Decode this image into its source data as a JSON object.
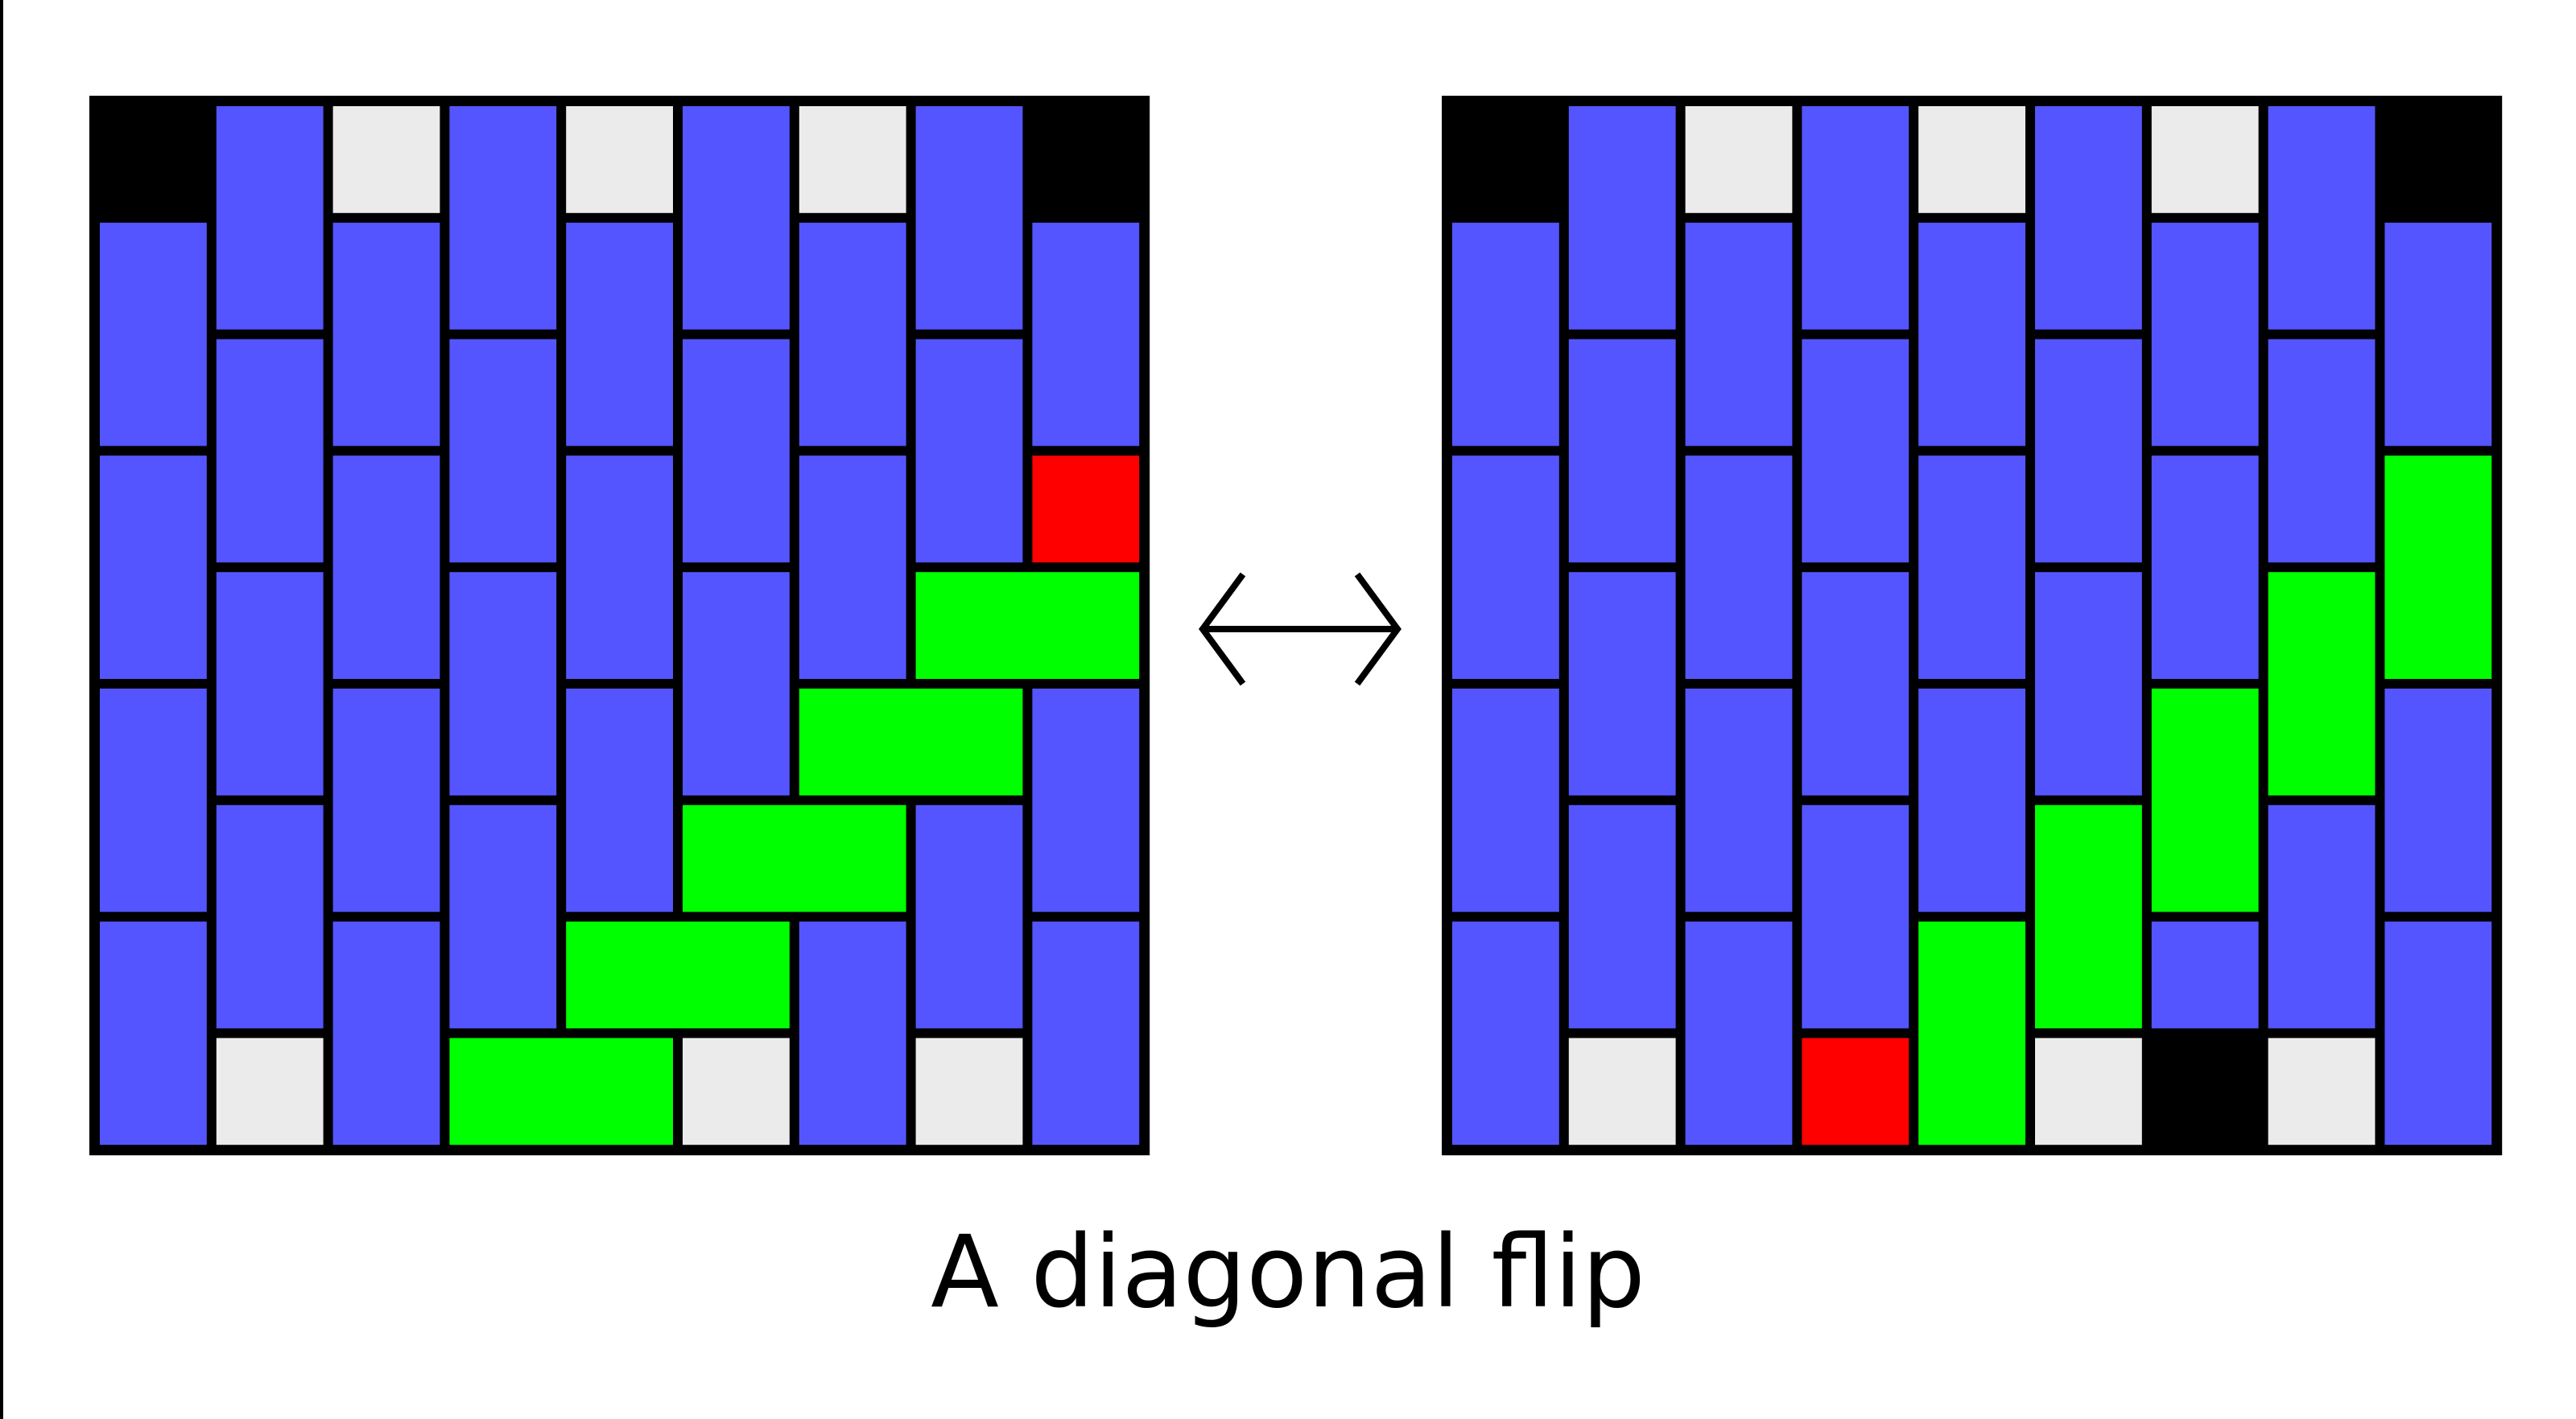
{
  "caption": "A diagonal flip",
  "arrow_icon": "left-right-arrow-icon",
  "colors": {
    "background": "#ffffff",
    "border": "#000000",
    "blue": "#5555ff",
    "gray": "#ebebeb",
    "green": "#00ff00",
    "red": "#ff0000",
    "black": "#000000"
  },
  "grid_size": 9,
  "boards": [
    {
      "name": "before-flip",
      "cells": [
        [
          "K",
          "B",
          "G",
          "B",
          "G",
          "B",
          "G",
          "B",
          "K"
        ],
        [
          "B",
          "B",
          "B",
          "B",
          "B",
          "B",
          "B",
          "B",
          "B"
        ],
        [
          "B",
          "B",
          "B",
          "B",
          "B",
          "B",
          "B",
          "B",
          "B"
        ],
        [
          "B",
          "B",
          "B",
          "B",
          "B",
          "B",
          "B",
          "B",
          "B"
        ],
        [
          "B",
          "B",
          "B",
          "B",
          "B",
          "B",
          "B",
          "B",
          "R"
        ],
        [
          "B",
          "B",
          "B",
          "B",
          "B",
          "B",
          "B",
          "N",
          "N"
        ],
        [
          "B",
          "B",
          "B",
          "B",
          "B",
          "B",
          "B",
          "N",
          "N"
        ],
        [
          "B",
          "B",
          "B",
          "B",
          "B",
          "N",
          "N",
          "B",
          "B"
        ],
        [
          "B",
          "B",
          "B",
          "B",
          "B",
          "N",
          "N",
          "B",
          "B"
        ],
        [
          "B",
          "B",
          "B",
          "B",
          "N",
          "N",
          "B",
          "B",
          "B"
        ],
        [
          "B",
          "B",
          "B",
          "B",
          "N",
          "N",
          "B",
          "B",
          "B"
        ],
        [
          "B",
          "B",
          "B",
          "N",
          "N",
          "B",
          "B",
          "B",
          "B"
        ],
        [
          "B",
          "B",
          "B",
          "N",
          "N",
          "B",
          "B",
          "B",
          "B"
        ],
        [
          "B",
          "G",
          "B",
          "N",
          "N",
          "G",
          "B",
          "G",
          "B"
        ]
      ],
      "cells_note": "",
      "tiles": [
        {
          "type": "black",
          "c": 0,
          "r": 0,
          "w": 1,
          "h": 1
        },
        {
          "type": "gray",
          "c": 2,
          "r": 0,
          "w": 1,
          "h": 1
        },
        {
          "type": "gray",
          "c": 4,
          "r": 0,
          "w": 1,
          "h": 1
        },
        {
          "type": "gray",
          "c": 6,
          "r": 0,
          "w": 1,
          "h": 1
        },
        {
          "type": "black",
          "c": 8,
          "r": 0,
          "w": 1,
          "h": 1
        },
        {
          "type": "blue",
          "c": 1,
          "r": 0,
          "w": 1,
          "h": 2
        },
        {
          "type": "blue",
          "c": 3,
          "r": 0,
          "w": 1,
          "h": 2
        },
        {
          "type": "blue",
          "c": 5,
          "r": 0,
          "w": 1,
          "h": 2
        },
        {
          "type": "blue",
          "c": 7,
          "r": 0,
          "w": 1,
          "h": 2
        },
        {
          "type": "blue",
          "c": 0,
          "r": 1,
          "w": 1,
          "h": 2
        },
        {
          "type": "blue",
          "c": 2,
          "r": 1,
          "w": 1,
          "h": 2
        },
        {
          "type": "blue",
          "c": 4,
          "r": 1,
          "w": 1,
          "h": 2
        },
        {
          "type": "blue",
          "c": 6,
          "r": 1,
          "w": 1,
          "h": 2
        },
        {
          "type": "blue",
          "c": 8,
          "r": 1,
          "w": 1,
          "h": 2
        },
        {
          "type": "blue",
          "c": 1,
          "r": 2,
          "w": 1,
          "h": 2
        },
        {
          "type": "blue",
          "c": 3,
          "r": 2,
          "w": 1,
          "h": 2
        },
        {
          "type": "blue",
          "c": 5,
          "r": 2,
          "w": 1,
          "h": 2
        },
        {
          "type": "blue",
          "c": 7,
          "r": 2,
          "w": 1,
          "h": 2
        },
        {
          "type": "red",
          "c": 8,
          "r": 3,
          "w": 1,
          "h": 1
        },
        {
          "type": "blue",
          "c": 0,
          "r": 3,
          "w": 1,
          "h": 2
        },
        {
          "type": "blue",
          "c": 2,
          "r": 3,
          "w": 1,
          "h": 2
        },
        {
          "type": "blue",
          "c": 4,
          "r": 3,
          "w": 1,
          "h": 2
        },
        {
          "type": "blue",
          "c": 6,
          "r": 3,
          "w": 1,
          "h": 2
        },
        {
          "type": "green",
          "c": 7,
          "r": 4,
          "w": 2,
          "h": 1
        },
        {
          "type": "blue",
          "c": 1,
          "r": 4,
          "w": 1,
          "h": 2
        },
        {
          "type": "blue",
          "c": 3,
          "r": 4,
          "w": 1,
          "h": 2
        },
        {
          "type": "blue",
          "c": 5,
          "r": 4,
          "w": 1,
          "h": 2
        },
        {
          "type": "green",
          "c": 6,
          "r": 5,
          "w": 2,
          "h": 1
        },
        {
          "type": "blue",
          "c": 0,
          "r": 5,
          "w": 1,
          "h": 2
        },
        {
          "type": "blue",
          "c": 2,
          "r": 5,
          "w": 1,
          "h": 2
        },
        {
          "type": "blue",
          "c": 4,
          "r": 5,
          "w": 1,
          "h": 2
        },
        {
          "type": "blue",
          "c": 8,
          "r": 5,
          "w": 1,
          "h": 2
        },
        {
          "type": "green",
          "c": 5,
          "r": 6,
          "w": 2,
          "h": 1
        },
        {
          "type": "blue",
          "c": 1,
          "r": 6,
          "w": 1,
          "h": 2
        },
        {
          "type": "blue",
          "c": 3,
          "r": 6,
          "w": 1,
          "h": 2
        },
        {
          "type": "blue",
          "c": 7,
          "r": 6,
          "w": 1,
          "h": 2
        },
        {
          "type": "green",
          "c": 4,
          "r": 7,
          "w": 2,
          "h": 1
        },
        {
          "type": "blue",
          "c": 0,
          "r": 7,
          "w": 1,
          "h": 2
        },
        {
          "type": "blue",
          "c": 2,
          "r": 7,
          "w": 1,
          "h": 2
        },
        {
          "type": "blue",
          "c": 6,
          "r": 7,
          "w": 1,
          "h": 2
        },
        {
          "type": "blue",
          "c": 8,
          "r": 7,
          "w": 1,
          "h": 2
        },
        {
          "type": "green",
          "c": 3,
          "r": 8,
          "w": 2,
          "h": 1
        },
        {
          "type": "gray",
          "c": 1,
          "r": 8,
          "w": 1,
          "h": 1
        },
        {
          "type": "gray",
          "c": 5,
          "r": 8,
          "w": 1,
          "h": 1
        },
        {
          "type": "gray",
          "c": 7,
          "r": 8,
          "w": 1,
          "h": 1
        }
      ]
    },
    {
      "name": "after-flip",
      "tiles": [
        {
          "type": "black",
          "c": 0,
          "r": 0,
          "w": 1,
          "h": 1
        },
        {
          "type": "gray",
          "c": 2,
          "r": 0,
          "w": 1,
          "h": 1
        },
        {
          "type": "gray",
          "c": 4,
          "r": 0,
          "w": 1,
          "h": 1
        },
        {
          "type": "gray",
          "c": 6,
          "r": 0,
          "w": 1,
          "h": 1
        },
        {
          "type": "black",
          "c": 8,
          "r": 0,
          "w": 1,
          "h": 1
        },
        {
          "type": "blue",
          "c": 1,
          "r": 0,
          "w": 1,
          "h": 2
        },
        {
          "type": "blue",
          "c": 3,
          "r": 0,
          "w": 1,
          "h": 2
        },
        {
          "type": "blue",
          "c": 5,
          "r": 0,
          "w": 1,
          "h": 2
        },
        {
          "type": "blue",
          "c": 7,
          "r": 0,
          "w": 1,
          "h": 2
        },
        {
          "type": "blue",
          "c": 0,
          "r": 1,
          "w": 1,
          "h": 2
        },
        {
          "type": "blue",
          "c": 2,
          "r": 1,
          "w": 1,
          "h": 2
        },
        {
          "type": "blue",
          "c": 4,
          "r": 1,
          "w": 1,
          "h": 2
        },
        {
          "type": "blue",
          "c": 6,
          "r": 1,
          "w": 1,
          "h": 2
        },
        {
          "type": "blue",
          "c": 8,
          "r": 1,
          "w": 1,
          "h": 2
        },
        {
          "type": "blue",
          "c": 1,
          "r": 2,
          "w": 1,
          "h": 2
        },
        {
          "type": "blue",
          "c": 3,
          "r": 2,
          "w": 1,
          "h": 2
        },
        {
          "type": "blue",
          "c": 5,
          "r": 2,
          "w": 1,
          "h": 2
        },
        {
          "type": "blue",
          "c": 7,
          "r": 2,
          "w": 1,
          "h": 2
        },
        {
          "type": "green",
          "c": 8,
          "r": 3,
          "w": 1,
          "h": 2
        },
        {
          "type": "blue",
          "c": 0,
          "r": 3,
          "w": 1,
          "h": 2
        },
        {
          "type": "blue",
          "c": 2,
          "r": 3,
          "w": 1,
          "h": 2
        },
        {
          "type": "blue",
          "c": 4,
          "r": 3,
          "w": 1,
          "h": 2
        },
        {
          "type": "blue",
          "c": 6,
          "r": 3,
          "w": 1,
          "h": 2
        },
        {
          "type": "green",
          "c": 7,
          "r": 4,
          "w": 1,
          "h": 2
        },
        {
          "type": "blue",
          "c": 1,
          "r": 4,
          "w": 1,
          "h": 2
        },
        {
          "type": "blue",
          "c": 3,
          "r": 4,
          "w": 1,
          "h": 2
        },
        {
          "type": "blue",
          "c": 5,
          "r": 4,
          "w": 1,
          "h": 2
        },
        {
          "type": "green",
          "c": 6,
          "r": 5,
          "w": 1,
          "h": 2
        },
        {
          "type": "blue",
          "c": 0,
          "r": 5,
          "w": 1,
          "h": 2
        },
        {
          "type": "blue",
          "c": 2,
          "r": 5,
          "w": 1,
          "h": 2
        },
        {
          "type": "blue",
          "c": 4,
          "r": 5,
          "w": 1,
          "h": 2
        },
        {
          "type": "blue",
          "c": 8,
          "r": 5,
          "w": 1,
          "h": 2
        },
        {
          "type": "green",
          "c": 5,
          "r": 6,
          "w": 1,
          "h": 2
        },
        {
          "type": "blue",
          "c": 1,
          "r": 6,
          "w": 1,
          "h": 2
        },
        {
          "type": "blue",
          "c": 3,
          "r": 6,
          "w": 1,
          "h": 2
        },
        {
          "type": "blue",
          "c": 7,
          "r": 6,
          "w": 1,
          "h": 2
        },
        {
          "type": "green",
          "c": 4,
          "r": 7,
          "w": 1,
          "h": 2
        },
        {
          "type": "blue",
          "c": 0,
          "r": 7,
          "w": 1,
          "h": 2
        },
        {
          "type": "blue",
          "c": 2,
          "r": 7,
          "w": 1,
          "h": 2
        },
        {
          "type": "blue",
          "c": 6,
          "r": 7,
          "w": 1,
          "h": 1
        },
        {
          "type": "blue",
          "c": 8,
          "r": 7,
          "w": 1,
          "h": 2
        },
        {
          "type": "gray",
          "c": 1,
          "r": 8,
          "w": 1,
          "h": 1
        },
        {
          "type": "red",
          "c": 3,
          "r": 8,
          "w": 1,
          "h": 1
        },
        {
          "type": "gray",
          "c": 5,
          "r": 8,
          "w": 1,
          "h": 1
        },
        {
          "type": "gray",
          "c": 7,
          "r": 8,
          "w": 1,
          "h": 1
        }
      ]
    }
  ]
}
